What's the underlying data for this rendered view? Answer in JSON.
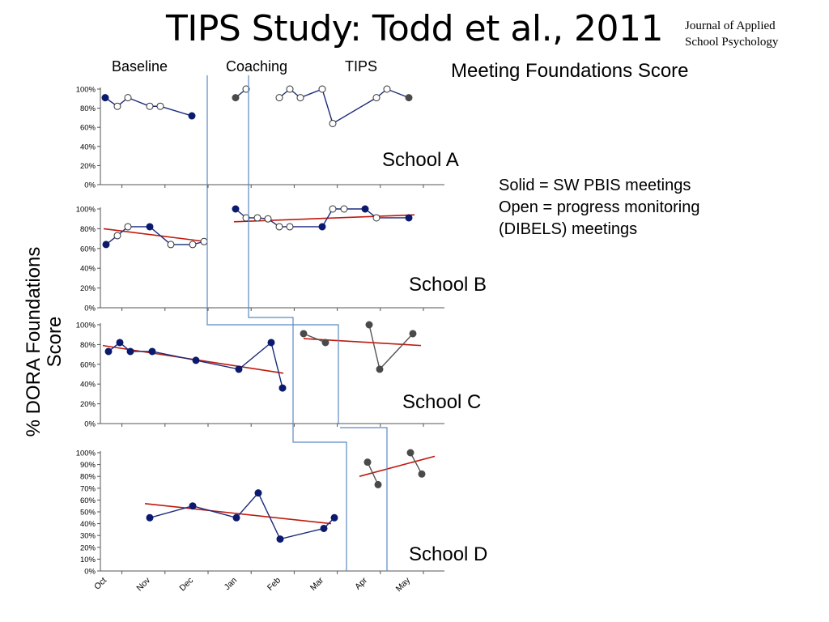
{
  "title": "TIPS Study: Todd et al., 2011",
  "journal": [
    "Journal of Applied",
    "School Psychology"
  ],
  "phases": [
    "Baseline",
    "Coaching",
    "TIPS"
  ],
  "measure_title": "Meeting Foundations Score",
  "legend": {
    "solid": "Solid = SW PBIS meetings",
    "open": "Open = progress monitoring",
    "open_cont": "(DIBELS) meetings"
  },
  "ylabel": "% DORA Foundations Score",
  "colors": {
    "line": "#1b2a7a",
    "marker": "#0b1a6e",
    "tips_marker": "#4a4a4a",
    "trend": "#c0190f",
    "phase_line": "#5b8ac2"
  },
  "chart_data": [
    {
      "type": "line",
      "title": "School A",
      "ylim": [
        0,
        100
      ],
      "yticks": [
        "0%",
        "20%",
        "40%",
        "60%",
        "80%",
        "100%"
      ],
      "series": [
        {
          "phase": "Baseline",
          "points": [
            {
              "x": 0,
              "y": 91,
              "solid": true
            },
            {
              "x": 1,
              "y": 82,
              "solid": false
            },
            {
              "x": 2,
              "y": 91,
              "solid": false
            },
            {
              "x": 3,
              "y": 82,
              "solid": false
            },
            {
              "x": 4,
              "y": 82,
              "solid": false
            },
            {
              "x": 5,
              "y": 72,
              "solid": true
            }
          ]
        },
        {
          "phase": "Coaching",
          "points": [
            {
              "x": 6,
              "y": 91,
              "solid": true
            },
            {
              "x": 7,
              "y": 100,
              "solid": false
            }
          ]
        },
        {
          "phase": "TIPS",
          "points": [
            {
              "x": 8,
              "y": 91,
              "solid": false
            },
            {
              "x": 9,
              "y": 100,
              "solid": false
            },
            {
              "x": 10,
              "y": 91,
              "solid": false
            },
            {
              "x": 11,
              "y": 100,
              "solid": false
            },
            {
              "x": 12,
              "y": 64,
              "solid": false
            },
            {
              "x": 13,
              "y": 91,
              "solid": false
            },
            {
              "x": 14,
              "y": 100,
              "solid": false
            },
            {
              "x": 15,
              "y": 91,
              "solid": true
            }
          ]
        }
      ],
      "trends": []
    },
    {
      "type": "line",
      "title": "School B",
      "ylim": [
        0,
        100
      ],
      "yticks": [
        "0%",
        "20%",
        "40%",
        "60%",
        "80%",
        "100%"
      ],
      "series": [
        {
          "phase": "Baseline",
          "points": [
            {
              "x": 0,
              "y": 64,
              "solid": true
            },
            {
              "x": 1,
              "y": 73,
              "solid": false
            },
            {
              "x": 2,
              "y": 82,
              "solid": false
            },
            {
              "x": 3,
              "y": 82,
              "solid": true
            },
            {
              "x": 4,
              "y": 64,
              "solid": false
            },
            {
              "x": 5,
              "y": 64,
              "solid": false
            },
            {
              "x": 6,
              "y": 67,
              "solid": false
            }
          ]
        },
        {
          "phase": "TIPS",
          "points": [
            {
              "x": 7,
              "y": 100,
              "solid": true
            },
            {
              "x": 8,
              "y": 91,
              "solid": false
            },
            {
              "x": 9,
              "y": 91,
              "solid": false
            },
            {
              "x": 10,
              "y": 90,
              "solid": false
            },
            {
              "x": 11,
              "y": 82,
              "solid": false
            },
            {
              "x": 12,
              "y": 82,
              "solid": false
            },
            {
              "x": 13,
              "y": 82,
              "solid": true
            },
            {
              "x": 14,
              "y": 100,
              "solid": false
            },
            {
              "x": 15,
              "y": 100,
              "solid": false
            },
            {
              "x": 16,
              "y": 100,
              "solid": true
            },
            {
              "x": 17,
              "y": 91,
              "solid": false
            },
            {
              "x": 18,
              "y": 91,
              "solid": true
            }
          ]
        }
      ],
      "trends": [
        {
          "from": [
            0,
            80
          ],
          "to": [
            6,
            67
          ]
        },
        {
          "from": [
            7,
            87
          ],
          "to": [
            18,
            94
          ]
        }
      ]
    },
    {
      "type": "line",
      "title": "School C",
      "ylim": [
        0,
        100
      ],
      "yticks": [
        "0%",
        "20%",
        "40%",
        "60%",
        "80%",
        "100%"
      ],
      "series": [
        {
          "phase": "Baseline",
          "points": [
            {
              "x": 0,
              "y": 73,
              "solid": true
            },
            {
              "x": 1,
              "y": 82,
              "solid": true
            },
            {
              "x": 2,
              "y": 73,
              "solid": true
            },
            {
              "x": 3,
              "y": 73,
              "solid": true
            },
            {
              "x": 4,
              "y": 64,
              "solid": true
            },
            {
              "x": 5,
              "y": 55,
              "solid": true
            },
            {
              "x": 6,
              "y": 82,
              "solid": true
            },
            {
              "x": 7,
              "y": 36,
              "solid": true
            }
          ]
        },
        {
          "phase": "TIPS",
          "points": [
            {
              "x": 8,
              "y": 91,
              "solid": true
            },
            {
              "x": 9,
              "y": 82,
              "solid": true
            }
          ]
        },
        {
          "phase": "TIPS",
          "points": [
            {
              "x": 10,
              "y": 100,
              "solid": true
            },
            {
              "x": 11,
              "y": 55,
              "solid": true
            },
            {
              "x": 12,
              "y": 91,
              "solid": true
            }
          ]
        }
      ],
      "trends": [
        {
          "from": [
            0,
            79
          ],
          "to": [
            7,
            51
          ]
        },
        {
          "from": [
            8,
            86
          ],
          "to": [
            12,
            79
          ]
        }
      ]
    },
    {
      "type": "line",
      "title": "School D",
      "ylim": [
        0,
        100
      ],
      "yticks": [
        "0%",
        "10%",
        "20%",
        "30%",
        "40%",
        "50%",
        "60%",
        "70%",
        "80%",
        "90%",
        "100%"
      ],
      "xticks": [
        "Oct",
        "Nov",
        "Dec",
        "Jan",
        "Feb",
        "Mar",
        "Apr",
        "May"
      ],
      "series": [
        {
          "phase": "Baseline",
          "points": [
            {
              "x": 0,
              "y": 45,
              "solid": true
            },
            {
              "x": 1,
              "y": 55,
              "solid": true
            },
            {
              "x": 2,
              "y": 45,
              "solid": true
            },
            {
              "x": 3,
              "y": 66,
              "solid": true
            },
            {
              "x": 4,
              "y": 27,
              "solid": true
            },
            {
              "x": 5,
              "y": 36,
              "solid": true
            },
            {
              "x": 6,
              "y": 45,
              "solid": true
            }
          ]
        },
        {
          "phase": "TIPS",
          "points": [
            {
              "x": 7,
              "y": 92,
              "solid": true
            },
            {
              "x": 8,
              "y": 73,
              "solid": true
            }
          ]
        },
        {
          "phase": "TIPS",
          "points": [
            {
              "x": 9,
              "y": 100,
              "solid": true
            },
            {
              "x": 10,
              "y": 82,
              "solid": true
            }
          ]
        }
      ],
      "trends": [
        {
          "from": [
            0,
            57
          ],
          "to": [
            6,
            40
          ]
        },
        {
          "from": [
            7,
            80
          ],
          "to": [
            10,
            97
          ]
        }
      ]
    }
  ]
}
